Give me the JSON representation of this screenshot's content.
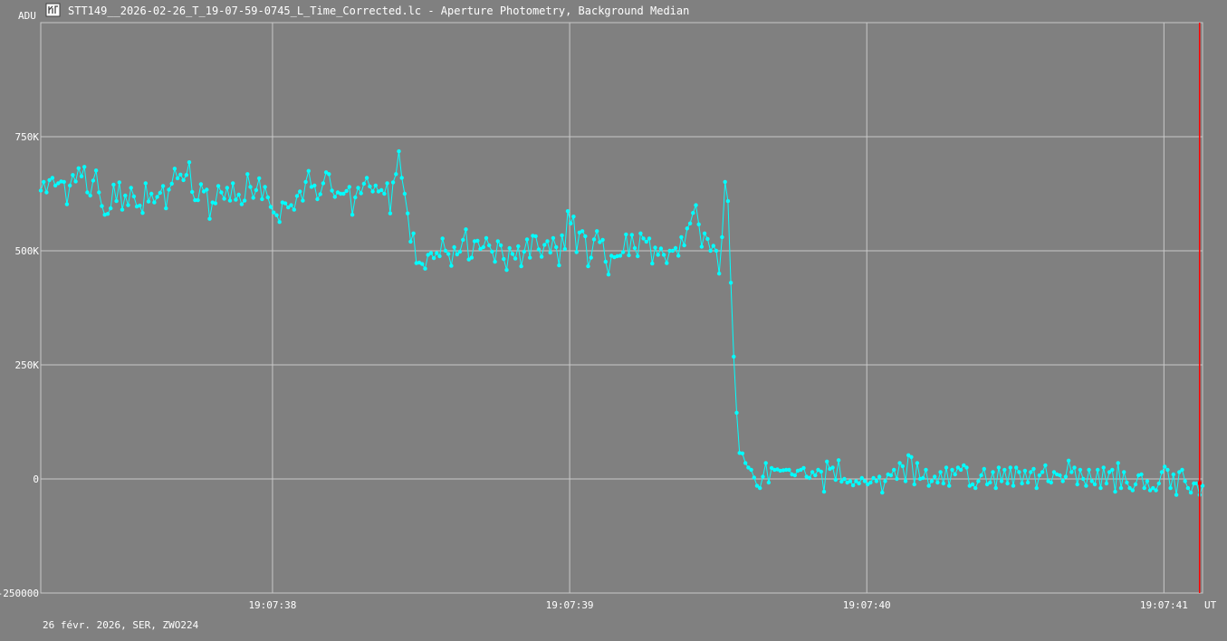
{
  "window": {
    "title": "STT149__2026-02-26_T_19-07-59-0745_L_Time_Corrected.lc - Aperture Photometry, Background Median",
    "footer": "26 févr. 2026, SER, ZWO224",
    "icon": "lightcurve-app-icon"
  },
  "colors": {
    "background": "#808080",
    "grid": "#c8c8c8",
    "series": "#00ffff",
    "marker": "#ff0000"
  },
  "chart_data": {
    "type": "line",
    "title": "STT149__2026-02-26_T_19-07-59-0745_L_Time_Corrected.lc - Aperture Photometry, Background Median",
    "ylabel": "ADU",
    "xlabel": "UT",
    "ylim": [
      -250000,
      1000000
    ],
    "xlim": [
      37.22,
      41.13
    ],
    "y_ticks": [
      {
        "value": 750000,
        "label": "750K"
      },
      {
        "value": 500000,
        "label": "500K"
      },
      {
        "value": 250000,
        "label": "250K"
      },
      {
        "value": 0,
        "label": "0"
      },
      {
        "value": -250000,
        "label": "-250000"
      }
    ],
    "x_ticks": [
      {
        "value": 38,
        "label": "19:07:38"
      },
      {
        "value": 39,
        "label": "19:07:39"
      },
      {
        "value": 40,
        "label": "19:07:40"
      },
      {
        "value": 41,
        "label": "19:07:41"
      }
    ],
    "cursor_x": 41.12,
    "grid": true,
    "series": [
      {
        "y": [
          632000,
          651000,
          628000,
          655000,
          660000,
          643000,
          648000,
          652000,
          651000,
          602000,
          643000,
          666000,
          652000,
          681000,
          663000,
          684000,
          628000,
          621000,
          654000,
          676000,
          628000,
          598000,
          579000,
          581000,
          593000,
          645000,
          609000,
          650000,
          590000,
          621000,
          600000,
          638000,
          619000,
          597000,
          599000,
          583000,
          648000,
          608000,
          625000,
          606000,
          618000,
          627000,
          642000,
          593000,
          634000,
          647000,
          680000,
          659000,
          667000,
          655000,
          666000,
          694000,
          629000,
          611000,
          611000,
          646000,
          630000,
          634000,
          570000,
          606000,
          604000,
          642000,
          628000,
          614000,
          638000,
          610000,
          648000,
          612000,
          623000,
          602000,
          610000,
          668000,
          640000,
          616000,
          633000,
          659000,
          613000,
          640000,
          617000,
          596000,
          584000,
          578000,
          563000,
          606000,
          604000,
          595000,
          600000,
          590000,
          620000,
          630000,
          610000,
          651000,
          675000,
          640000,
          643000,
          613000,
          624000,
          648000,
          672000,
          668000,
          632000,
          618000,
          628000,
          625000,
          625000,
          631000,
          640000,
          579000,
          617000,
          638000,
          626000,
          647000,
          660000,
          641000,
          630000,
          643000,
          630000,
          633000,
          625000,
          648000,
          582000,
          650000,
          668000,
          718000,
          660000,
          625000,
          582000,
          520000,
          538000,
          473000,
          474000,
          471000,
          461000,
          491000,
          495000,
          484000,
          495000,
          488000,
          527000,
          500000,
          493000,
          467000,
          508000,
          492000,
          498000,
          524000,
          547000,
          481000,
          485000,
          521000,
          522000,
          504000,
          508000,
          528000,
          512000,
          498000,
          476000,
          521000,
          512000,
          482000,
          458000,
          506000,
          493000,
          483000,
          510000,
          466000,
          498000,
          525000,
          485000,
          533000,
          532000,
          503000,
          487000,
          513000,
          521000,
          496000,
          528000,
          508000,
          468000,
          534000,
          504000,
          587000,
          560000,
          575000,
          497000,
          540000,
          543000,
          532000,
          466000,
          485000,
          525000,
          543000,
          519000,
          524000,
          476000,
          448000,
          489000,
          486000,
          488000,
          489000,
          497000,
          536000,
          490000,
          535000,
          506000,
          488000,
          538000,
          527000,
          520000,
          527000,
          472000,
          507000,
          491000,
          505000,
          491000,
          473000,
          500000,
          500000,
          506000,
          489000,
          530000,
          512000,
          549000,
          560000,
          583000,
          600000,
          558000,
          509000,
          538000,
          526000,
          500000,
          511000,
          500000,
          450000,
          530000,
          651000,
          609000,
          430000,
          268000,
          145000,
          57000,
          56000,
          35000,
          25000,
          20000,
          3000,
          -15000,
          -20000,
          5000,
          35000,
          -8000,
          24000,
          20000,
          21000,
          18000,
          19000,
          20000,
          20000,
          10000,
          8000,
          18000,
          20000,
          24000,
          5000,
          2000,
          15000,
          8000,
          20000,
          16000,
          -28000,
          38000,
          22000,
          25000,
          -2000,
          41000,
          -6000,
          0,
          -8000,
          -5000,
          -14000,
          -5000,
          -10000,
          2000,
          -5000,
          -12000,
          -8000,
          2000,
          -5000,
          5000,
          -30000,
          -5000,
          10000,
          8000,
          20000,
          0,
          35000,
          28000,
          -5000,
          52000,
          48000,
          -12000,
          35000,
          0,
          2000,
          20000,
          -15000,
          -5000,
          5000,
          -8000,
          15000,
          -10000,
          25000,
          -15000,
          20000,
          10000,
          25000,
          20000,
          30000,
          25000,
          -15000,
          -12000,
          -20000,
          -5000,
          8000,
          22000,
          -12000,
          -8000,
          15000,
          -20000,
          25000,
          -5000,
          20000,
          -10000,
          25000,
          -15000,
          25000,
          15000,
          -10000,
          18000,
          -8000,
          15000,
          22000,
          -20000,
          8000,
          15000,
          30000,
          -5000,
          -8000,
          15000,
          10000,
          8000,
          -5000,
          5000,
          40000,
          15000,
          25000,
          -12000,
          20000,
          0,
          -15000,
          20000,
          -5000,
          -12000,
          20000,
          -20000,
          25000,
          -10000,
          15000,
          20000,
          -28000,
          35000,
          -20000,
          15000,
          -8000,
          -20000,
          -25000,
          -12000,
          8000,
          10000,
          -20000,
          -5000,
          -25000,
          -20000,
          -25000,
          -10000,
          15000,
          27000,
          20000,
          -20000,
          10000,
          -35000,
          15000,
          20000,
          -5000,
          -20000,
          -30000,
          -10000,
          -10000,
          -35000,
          -15000
        ],
        "x_start": 37.22,
        "x_end": 41.13
      }
    ]
  }
}
